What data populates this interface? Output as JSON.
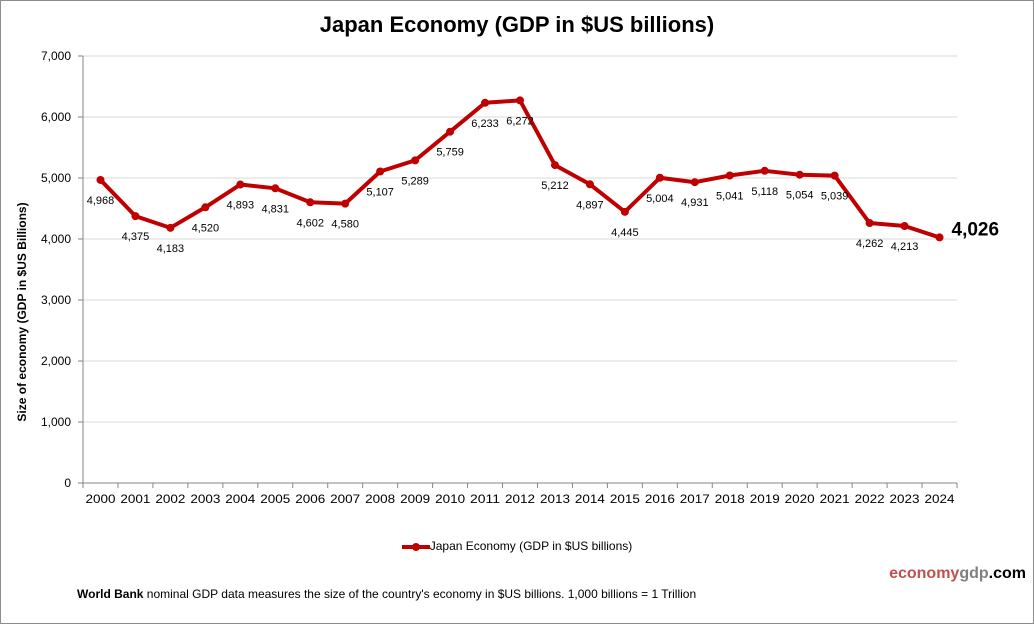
{
  "chart_data": {
    "type": "line",
    "title": "Japan Economy (GDP in $US billions)",
    "xlabel": "",
    "ylabel": "Size of economy (GDP in $US Billions)",
    "ylim": [
      0,
      7000
    ],
    "yticks": [
      0,
      1000,
      2000,
      3000,
      4000,
      5000,
      6000,
      7000
    ],
    "ytick_labels": [
      "0",
      "1,000",
      "2,000",
      "3,000",
      "4,000",
      "5,000",
      "6,000",
      "7,000"
    ],
    "grid": true,
    "legend_position": "bottom",
    "x": [
      "2000",
      "2001",
      "2002",
      "2003",
      "2004",
      "2005",
      "2006",
      "2007",
      "2008",
      "2009",
      "2010",
      "2011",
      "2012",
      "2013",
      "2014",
      "2015",
      "2016",
      "2017",
      "2018",
      "2019",
      "2020",
      "2021",
      "2022",
      "2023",
      "2024"
    ],
    "series": [
      {
        "name": "Japan Economy (GDP in $US billions)",
        "color": "#c00000",
        "values": [
          4968,
          4375,
          4183,
          4520,
          4893,
          4831,
          4602,
          4580,
          5107,
          5289,
          5759,
          6233,
          6272,
          5212,
          4897,
          4445,
          5004,
          4931,
          5041,
          5118,
          5054,
          5039,
          4262,
          4213,
          4026
        ],
        "labels": [
          "4,968",
          "4,375",
          "4,183",
          "4,520",
          "4,893",
          "4,831",
          "4,602",
          "4,580",
          "5,107",
          "5,289",
          "5,759",
          "6,233",
          "6,272",
          "5,212",
          "4,897",
          "4,445",
          "5,004",
          "4,931",
          "5,041",
          "5,118",
          "5,054",
          "5,039",
          "4,262",
          "4,213",
          "4,026"
        ]
      }
    ],
    "annotations": [
      {
        "x": "2024",
        "text": "4,026",
        "emphasis": "bold-large"
      }
    ]
  },
  "legend": {
    "label": "Japan Economy (GDP in $US billions)"
  },
  "logo": {
    "part1": "economy",
    "part2": "gdp",
    "part3": ".com"
  },
  "footnote": {
    "bold": "World Bank",
    "text": " nominal GDP data  measures the size of the country's economy in $US billions. 1,000 billions = 1 Trillion"
  },
  "colors": {
    "line": "#c00000",
    "grid": "#d9d9d9",
    "axis": "#868686",
    "logo_red": "#c0504d",
    "logo_gray": "#808080"
  }
}
